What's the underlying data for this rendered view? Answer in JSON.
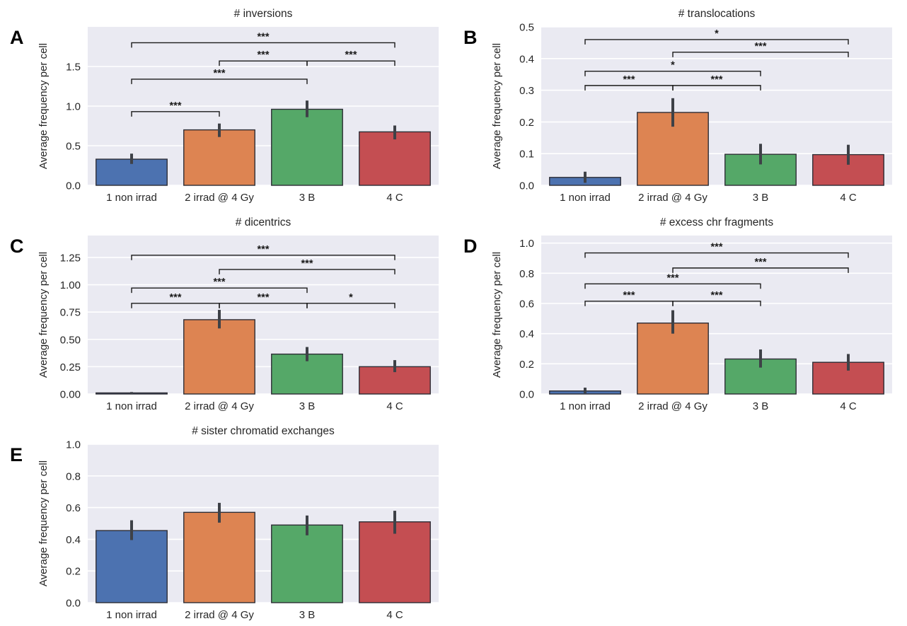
{
  "style": {
    "figure_background": "#ffffff",
    "plot_background": "#eaeaf2",
    "grid_color": "#ffffff",
    "bar_colors": [
      "#4c72b0",
      "#dd8452",
      "#55a868",
      "#c44e52"
    ],
    "bar_edge_color": "#2e2e36",
    "error_bar_color": "#3e4147",
    "text_color": "#262626",
    "bracket_color": "#1a1a1a"
  },
  "shared": {
    "ylabel": "Average frequency per cell",
    "categories": [
      "1 non irrad",
      "2 irrad @ 4 Gy",
      "3 B",
      "4 C"
    ]
  },
  "chart_data": [
    {
      "panel": "A",
      "type": "bar",
      "title": "# inversions",
      "xlabel": "",
      "ylabel": "Average frequency per cell",
      "categories": [
        "1 non irrad",
        "2 irrad @ 4 Gy",
        "3 B",
        "4 C"
      ],
      "values": [
        0.33,
        0.7,
        0.96,
        0.675
      ],
      "ci_low": [
        0.27,
        0.61,
        0.86,
        0.58
      ],
      "ci_high": [
        0.4,
        0.78,
        1.07,
        0.755
      ],
      "ylim": [
        0,
        2.0
      ],
      "grid": true,
      "yticks": [
        {
          "v": 0.0,
          "label": "0.0"
        },
        {
          "v": 0.5,
          "label": "0.5"
        },
        {
          "v": 1.0,
          "label": "1.0"
        },
        {
          "v": 1.5,
          "label": "1.5"
        }
      ],
      "significance": [
        {
          "group1": 0,
          "group2": 1,
          "height": 0.93,
          "label": "***"
        },
        {
          "group1": 0,
          "group2": 2,
          "height": 1.34,
          "label": "***"
        },
        {
          "group1": 1,
          "group2": 2,
          "height": 1.57,
          "label": "***"
        },
        {
          "group1": 2,
          "group2": 3,
          "height": 1.57,
          "label": "***"
        },
        {
          "group1": 0,
          "group2": 3,
          "height": 1.8,
          "label": "***"
        }
      ]
    },
    {
      "panel": "B",
      "type": "bar",
      "title": "# translocations",
      "xlabel": "",
      "ylabel": "Average frequency per cell",
      "categories": [
        "1 non irrad",
        "2 irrad @ 4 Gy",
        "3 B",
        "4 C"
      ],
      "values": [
        0.025,
        0.23,
        0.098,
        0.097
      ],
      "ci_low": [
        0.008,
        0.185,
        0.066,
        0.065
      ],
      "ci_high": [
        0.043,
        0.275,
        0.131,
        0.128
      ],
      "ylim": [
        0,
        0.5
      ],
      "grid": true,
      "yticks": [
        {
          "v": 0.0,
          "label": "0.0"
        },
        {
          "v": 0.1,
          "label": "0.1"
        },
        {
          "v": 0.2,
          "label": "0.2"
        },
        {
          "v": 0.3,
          "label": "0.3"
        },
        {
          "v": 0.4,
          "label": "0.4"
        },
        {
          "v": 0.5,
          "label": "0.5"
        }
      ],
      "significance": [
        {
          "group1": 0,
          "group2": 1,
          "height": 0.315,
          "label": "***"
        },
        {
          "group1": 1,
          "group2": 2,
          "height": 0.315,
          "label": "***"
        },
        {
          "group1": 0,
          "group2": 2,
          "height": 0.36,
          "label": "*"
        },
        {
          "group1": 1,
          "group2": 3,
          "height": 0.42,
          "label": "***"
        },
        {
          "group1": 0,
          "group2": 3,
          "height": 0.46,
          "label": "*"
        }
      ]
    },
    {
      "panel": "C",
      "type": "bar",
      "title": "# dicentrics",
      "xlabel": "",
      "ylabel": "Average frequency per cell",
      "categories": [
        "1 non irrad",
        "2 irrad @ 4 Gy",
        "3 B",
        "4 C"
      ],
      "values": [
        0.01,
        0.68,
        0.365,
        0.25
      ],
      "ci_low": [
        0.004,
        0.6,
        0.3,
        0.2
      ],
      "ci_high": [
        0.018,
        0.77,
        0.43,
        0.31
      ],
      "ylim": [
        0,
        1.45
      ],
      "grid": true,
      "yticks": [
        {
          "v": 0.0,
          "label": "0.00"
        },
        {
          "v": 0.25,
          "label": "0.25"
        },
        {
          "v": 0.5,
          "label": "0.50"
        },
        {
          "v": 0.75,
          "label": "0.75"
        },
        {
          "v": 1.0,
          "label": "1.00"
        },
        {
          "v": 1.25,
          "label": "1.25"
        }
      ],
      "significance": [
        {
          "group1": 0,
          "group2": 1,
          "height": 0.83,
          "label": "***"
        },
        {
          "group1": 1,
          "group2": 2,
          "height": 0.83,
          "label": "***"
        },
        {
          "group1": 2,
          "group2": 3,
          "height": 0.83,
          "label": "*"
        },
        {
          "group1": 0,
          "group2": 2,
          "height": 0.97,
          "label": "***"
        },
        {
          "group1": 1,
          "group2": 3,
          "height": 1.14,
          "label": "***"
        },
        {
          "group1": 0,
          "group2": 3,
          "height": 1.27,
          "label": "***"
        }
      ]
    },
    {
      "panel": "D",
      "type": "bar",
      "title": "# excess chr fragments",
      "xlabel": "",
      "ylabel": "Average frequency per cell",
      "categories": [
        "1 non irrad",
        "2 irrad @ 4 Gy",
        "3 B",
        "4 C"
      ],
      "values": [
        0.02,
        0.47,
        0.232,
        0.21
      ],
      "ci_low": [
        0.005,
        0.4,
        0.175,
        0.155
      ],
      "ci_high": [
        0.042,
        0.555,
        0.295,
        0.265
      ],
      "ylim": [
        0,
        1.05
      ],
      "grid": true,
      "yticks": [
        {
          "v": 0.0,
          "label": "0.0"
        },
        {
          "v": 0.2,
          "label": "0.2"
        },
        {
          "v": 0.4,
          "label": "0.4"
        },
        {
          "v": 0.6,
          "label": "0.6"
        },
        {
          "v": 0.8,
          "label": "0.8"
        },
        {
          "v": 1.0,
          "label": "1.0"
        }
      ],
      "significance": [
        {
          "group1": 0,
          "group2": 1,
          "height": 0.615,
          "label": "***"
        },
        {
          "group1": 1,
          "group2": 2,
          "height": 0.615,
          "label": "***"
        },
        {
          "group1": 0,
          "group2": 2,
          "height": 0.73,
          "label": "***"
        },
        {
          "group1": 1,
          "group2": 3,
          "height": 0.835,
          "label": "***"
        },
        {
          "group1": 0,
          "group2": 3,
          "height": 0.935,
          "label": "***"
        }
      ]
    },
    {
      "panel": "E",
      "type": "bar",
      "title": "# sister chromatid exchanges",
      "xlabel": "",
      "ylabel": "Average frequency per cell",
      "categories": [
        "1 non irrad",
        "2 irrad @ 4 Gy",
        "3 B",
        "4 C"
      ],
      "values": [
        0.455,
        0.57,
        0.49,
        0.51
      ],
      "ci_low": [
        0.395,
        0.505,
        0.425,
        0.435
      ],
      "ci_high": [
        0.52,
        0.63,
        0.55,
        0.58
      ],
      "ylim": [
        0,
        1.0
      ],
      "grid": true,
      "yticks": [
        {
          "v": 0.0,
          "label": "0.0"
        },
        {
          "v": 0.2,
          "label": "0.2"
        },
        {
          "v": 0.4,
          "label": "0.4"
        },
        {
          "v": 0.6,
          "label": "0.6"
        },
        {
          "v": 0.8,
          "label": "0.8"
        },
        {
          "v": 1.0,
          "label": "1.0"
        }
      ],
      "significance": []
    }
  ]
}
